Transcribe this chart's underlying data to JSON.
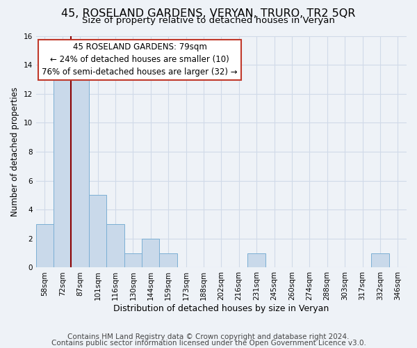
{
  "title": "45, ROSELAND GARDENS, VERYAN, TRURO, TR2 5QR",
  "subtitle": "Size of property relative to detached houses in Veryan",
  "xlabel": "Distribution of detached houses by size in Veryan",
  "ylabel": "Number of detached properties",
  "bar_labels": [
    "58sqm",
    "72sqm",
    "87sqm",
    "101sqm",
    "116sqm",
    "130sqm",
    "144sqm",
    "159sqm",
    "173sqm",
    "188sqm",
    "202sqm",
    "216sqm",
    "231sqm",
    "245sqm",
    "260sqm",
    "274sqm",
    "288sqm",
    "303sqm",
    "317sqm",
    "332sqm",
    "346sqm"
  ],
  "bar_values": [
    3,
    13,
    13,
    5,
    3,
    1,
    2,
    1,
    0,
    0,
    0,
    0,
    1,
    0,
    0,
    0,
    0,
    0,
    0,
    1,
    0
  ],
  "bar_color": "#c9d9ea",
  "bar_edgecolor": "#7bafd4",
  "ylim": [
    0,
    16
  ],
  "yticks": [
    0,
    2,
    4,
    6,
    8,
    10,
    12,
    14,
    16
  ],
  "vline_x": 1.5,
  "vline_color": "#8b0000",
  "annotation_line1": "45 ROSELAND GARDENS: 79sqm",
  "annotation_line2": "← 24% of detached houses are smaller (10)",
  "annotation_line3": "76% of semi-detached houses are larger (32) →",
  "annotation_box_color": "white",
  "annotation_box_edgecolor": "#c0392b",
  "footer1": "Contains HM Land Registry data © Crown copyright and database right 2024.",
  "footer2": "Contains public sector information licensed under the Open Government Licence v3.0.",
  "background_color": "#eef2f7",
  "grid_color": "#d0dae8",
  "title_fontsize": 11.5,
  "subtitle_fontsize": 9.5,
  "annotation_fontsize": 8.5,
  "footer_fontsize": 7.5,
  "xlabel_fontsize": 9,
  "ylabel_fontsize": 8.5,
  "tick_fontsize": 7.5
}
